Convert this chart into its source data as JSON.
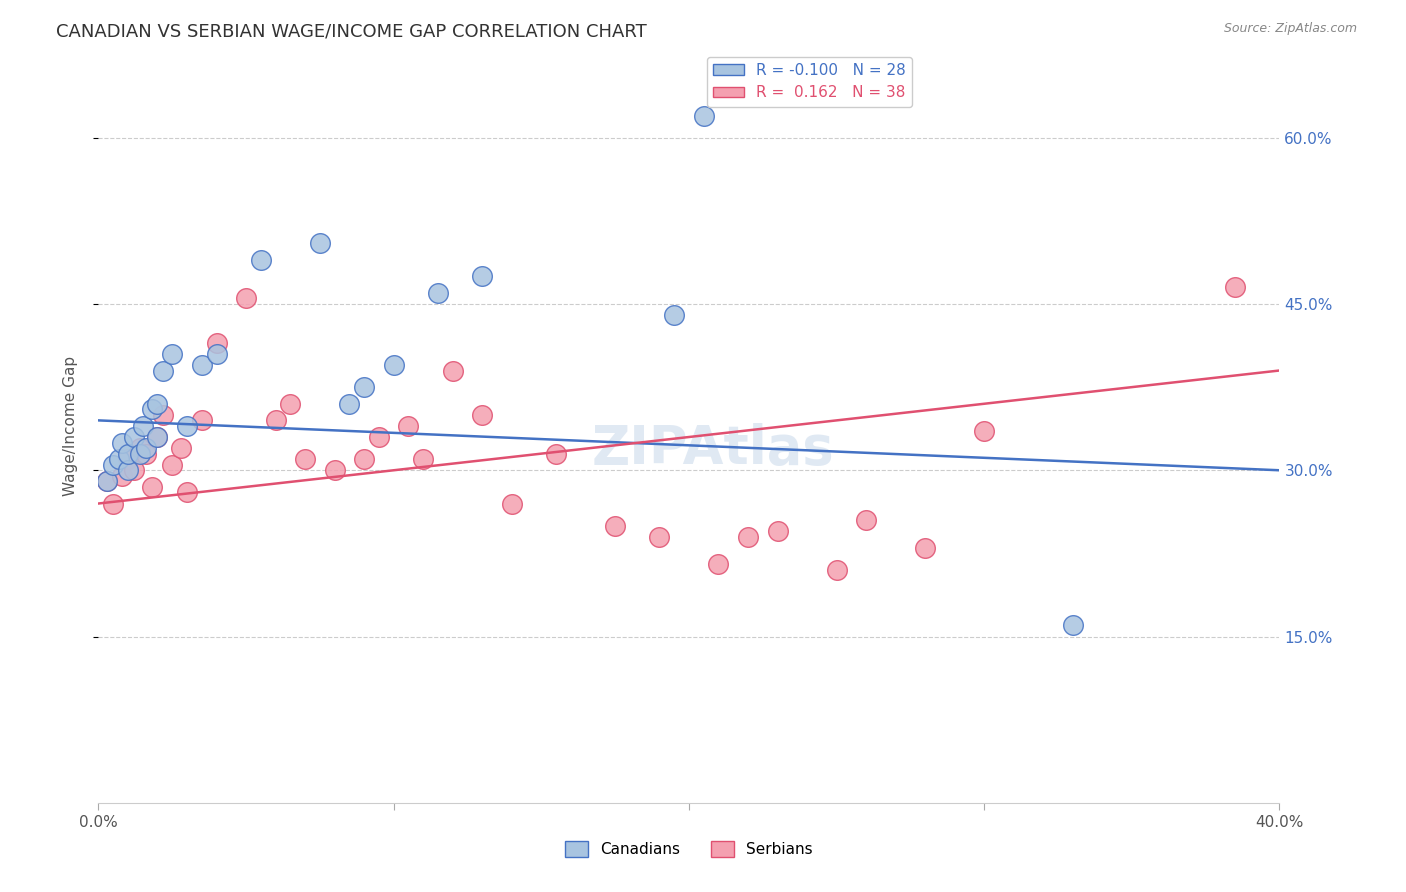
{
  "title": "CANADIAN VS SERBIAN WAGE/INCOME GAP CORRELATION CHART",
  "source": "Source: ZipAtlas.com",
  "ylabel": "Wage/Income Gap",
  "xlim": [
    0.0,
    0.4
  ],
  "ylim": [
    0.0,
    0.68
  ],
  "xticks": [
    0.0,
    0.1,
    0.2,
    0.3,
    0.4
  ],
  "xticklabels": [
    "0.0%",
    "",
    "",
    "",
    "40.0%"
  ],
  "yticks_right": [
    0.15,
    0.3,
    0.45,
    0.6
  ],
  "ytick_right_labels": [
    "15.0%",
    "30.0%",
    "45.0%",
    "60.0%"
  ],
  "canadian_R": -0.1,
  "canadian_N": 28,
  "serbian_R": 0.162,
  "serbian_N": 38,
  "canadian_color": "#a8c4e0",
  "serbian_color": "#f4a0b0",
  "canadian_line_color": "#4472c4",
  "serbian_line_color": "#e05070",
  "watermark": "ZIPAtlas",
  "canadian_line": [
    0.0,
    0.345,
    0.4,
    0.3
  ],
  "serbian_line": [
    0.0,
    0.27,
    0.4,
    0.39
  ],
  "canadians_x": [
    0.003,
    0.005,
    0.007,
    0.008,
    0.01,
    0.01,
    0.012,
    0.014,
    0.015,
    0.016,
    0.018,
    0.02,
    0.02,
    0.022,
    0.025,
    0.03,
    0.035,
    0.04,
    0.055,
    0.075,
    0.085,
    0.09,
    0.1,
    0.115,
    0.13,
    0.195,
    0.205,
    0.33
  ],
  "canadians_y": [
    0.29,
    0.305,
    0.31,
    0.325,
    0.3,
    0.315,
    0.33,
    0.315,
    0.34,
    0.32,
    0.355,
    0.36,
    0.33,
    0.39,
    0.405,
    0.34,
    0.395,
    0.405,
    0.49,
    0.505,
    0.36,
    0.375,
    0.395,
    0.46,
    0.475,
    0.44,
    0.62,
    0.16
  ],
  "serbians_x": [
    0.003,
    0.005,
    0.008,
    0.01,
    0.012,
    0.014,
    0.016,
    0.018,
    0.02,
    0.022,
    0.025,
    0.028,
    0.03,
    0.035,
    0.04,
    0.05,
    0.06,
    0.065,
    0.07,
    0.08,
    0.09,
    0.095,
    0.105,
    0.11,
    0.12,
    0.13,
    0.14,
    0.155,
    0.175,
    0.19,
    0.21,
    0.22,
    0.23,
    0.25,
    0.26,
    0.28,
    0.3,
    0.385
  ],
  "serbians_y": [
    0.29,
    0.27,
    0.295,
    0.31,
    0.3,
    0.32,
    0.315,
    0.285,
    0.33,
    0.35,
    0.305,
    0.32,
    0.28,
    0.345,
    0.415,
    0.455,
    0.345,
    0.36,
    0.31,
    0.3,
    0.31,
    0.33,
    0.34,
    0.31,
    0.39,
    0.35,
    0.27,
    0.315,
    0.25,
    0.24,
    0.215,
    0.24,
    0.245,
    0.21,
    0.255,
    0.23,
    0.335,
    0.465
  ],
  "dot_size": 200
}
